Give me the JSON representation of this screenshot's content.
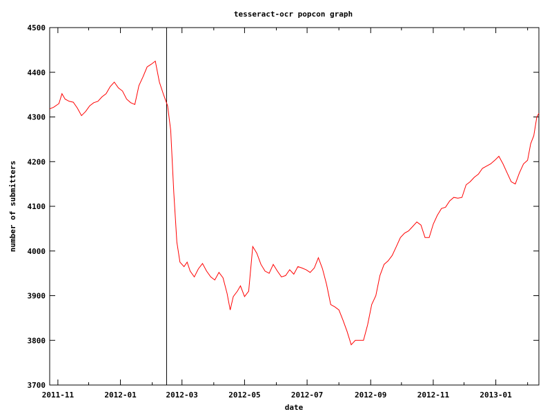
{
  "chart_data": {
    "type": "line",
    "title": "tesseract-ocr popcon graph",
    "xlabel": "date",
    "ylabel": "number of submitters",
    "ylim": [
      3700,
      4500
    ],
    "xlim": [
      "2011-10-24",
      "2013-02-12"
    ],
    "y_ticks": [
      3700,
      3800,
      3900,
      4000,
      4100,
      4200,
      4300,
      4400,
      4500
    ],
    "x_ticks": [
      "2011-11",
      "2012-01",
      "2012-03",
      "2012-05",
      "2012-07",
      "2012-09",
      "2012-11",
      "2013-01"
    ],
    "x_tick_dates": [
      "2011-11-01",
      "2012-01-01",
      "2012-03-01",
      "2012-05-01",
      "2012-07-01",
      "2012-09-01",
      "2012-11-01",
      "2013-01-01"
    ],
    "grid": false,
    "legend": "none",
    "marker_line_date": "2012-02-15",
    "series": [
      {
        "color": "#ff0000",
        "points": [
          [
            "2011-10-24",
            4318
          ],
          [
            "2011-10-28",
            4322
          ],
          [
            "2011-11-02",
            4330
          ],
          [
            "2011-11-05",
            4352
          ],
          [
            "2011-11-08",
            4340
          ],
          [
            "2011-11-12",
            4335
          ],
          [
            "2011-11-16",
            4333
          ],
          [
            "2011-11-20",
            4320
          ],
          [
            "2011-11-24",
            4303
          ],
          [
            "2011-11-28",
            4312
          ],
          [
            "2011-12-02",
            4325
          ],
          [
            "2011-12-06",
            4332
          ],
          [
            "2011-12-10",
            4335
          ],
          [
            "2011-12-14",
            4345
          ],
          [
            "2011-12-18",
            4352
          ],
          [
            "2011-12-22",
            4368
          ],
          [
            "2011-12-26",
            4378
          ],
          [
            "2011-12-30",
            4365
          ],
          [
            "2012-01-03",
            4358
          ],
          [
            "2012-01-07",
            4340
          ],
          [
            "2012-01-11",
            4332
          ],
          [
            "2012-01-15",
            4328
          ],
          [
            "2012-01-19",
            4370
          ],
          [
            "2012-01-23",
            4390
          ],
          [
            "2012-01-27",
            4412
          ],
          [
            "2012-01-31",
            4418
          ],
          [
            "2012-02-04",
            4425
          ],
          [
            "2012-02-08",
            4378
          ],
          [
            "2012-02-12",
            4350
          ],
          [
            "2012-02-16",
            4325
          ],
          [
            "2012-02-19",
            4270
          ],
          [
            "2012-02-22",
            4130
          ],
          [
            "2012-02-25",
            4020
          ],
          [
            "2012-02-28",
            3975
          ],
          [
            "2012-03-03",
            3965
          ],
          [
            "2012-03-06",
            3975
          ],
          [
            "2012-03-09",
            3955
          ],
          [
            "2012-03-13",
            3942
          ],
          [
            "2012-03-17",
            3960
          ],
          [
            "2012-03-21",
            3972
          ],
          [
            "2012-03-25",
            3955
          ],
          [
            "2012-03-29",
            3942
          ],
          [
            "2012-04-02",
            3935
          ],
          [
            "2012-04-06",
            3952
          ],
          [
            "2012-04-10",
            3940
          ],
          [
            "2012-04-14",
            3905
          ],
          [
            "2012-04-17",
            3868
          ],
          [
            "2012-04-20",
            3898
          ],
          [
            "2012-04-24",
            3910
          ],
          [
            "2012-04-27",
            3922
          ],
          [
            "2012-05-01",
            3898
          ],
          [
            "2012-05-05",
            3910
          ],
          [
            "2012-05-09",
            4010
          ],
          [
            "2012-05-13",
            3995
          ],
          [
            "2012-05-17",
            3970
          ],
          [
            "2012-05-21",
            3955
          ],
          [
            "2012-05-25",
            3950
          ],
          [
            "2012-05-29",
            3970
          ],
          [
            "2012-06-02",
            3955
          ],
          [
            "2012-06-06",
            3942
          ],
          [
            "2012-06-10",
            3945
          ],
          [
            "2012-06-14",
            3958
          ],
          [
            "2012-06-18",
            3948
          ],
          [
            "2012-06-22",
            3965
          ],
          [
            "2012-06-26",
            3962
          ],
          [
            "2012-06-30",
            3958
          ],
          [
            "2012-07-04",
            3952
          ],
          [
            "2012-07-08",
            3962
          ],
          [
            "2012-07-12",
            3985
          ],
          [
            "2012-07-16",
            3960
          ],
          [
            "2012-07-20",
            3925
          ],
          [
            "2012-07-24",
            3880
          ],
          [
            "2012-07-28",
            3875
          ],
          [
            "2012-08-01",
            3868
          ],
          [
            "2012-08-05",
            3845
          ],
          [
            "2012-08-09",
            3820
          ],
          [
            "2012-08-13",
            3790
          ],
          [
            "2012-08-17",
            3800
          ],
          [
            "2012-08-21",
            3800
          ],
          [
            "2012-08-25",
            3800
          ],
          [
            "2012-08-29",
            3835
          ],
          [
            "2012-09-02",
            3880
          ],
          [
            "2012-09-06",
            3900
          ],
          [
            "2012-09-10",
            3945
          ],
          [
            "2012-09-14",
            3970
          ],
          [
            "2012-09-18",
            3978
          ],
          [
            "2012-09-22",
            3990
          ],
          [
            "2012-09-26",
            4010
          ],
          [
            "2012-09-30",
            4030
          ],
          [
            "2012-10-04",
            4040
          ],
          [
            "2012-10-08",
            4045
          ],
          [
            "2012-10-12",
            4055
          ],
          [
            "2012-10-16",
            4065
          ],
          [
            "2012-10-20",
            4058
          ],
          [
            "2012-10-24",
            4030
          ],
          [
            "2012-10-28",
            4030
          ],
          [
            "2012-11-01",
            4060
          ],
          [
            "2012-11-05",
            4080
          ],
          [
            "2012-11-09",
            4095
          ],
          [
            "2012-11-13",
            4098
          ],
          [
            "2012-11-17",
            4112
          ],
          [
            "2012-11-21",
            4120
          ],
          [
            "2012-11-25",
            4118
          ],
          [
            "2012-11-29",
            4120
          ],
          [
            "2012-12-03",
            4148
          ],
          [
            "2012-12-07",
            4155
          ],
          [
            "2012-12-11",
            4165
          ],
          [
            "2012-12-15",
            4172
          ],
          [
            "2012-12-19",
            4185
          ],
          [
            "2012-12-23",
            4190
          ],
          [
            "2012-12-27",
            4195
          ],
          [
            "2012-12-31",
            4203
          ],
          [
            "2013-01-04",
            4212
          ],
          [
            "2013-01-08",
            4195
          ],
          [
            "2013-01-12",
            4175
          ],
          [
            "2013-01-16",
            4155
          ],
          [
            "2013-01-20",
            4150
          ],
          [
            "2013-01-24",
            4175
          ],
          [
            "2013-01-28",
            4195
          ],
          [
            "2013-02-01",
            4203
          ],
          [
            "2013-02-04",
            4240
          ],
          [
            "2013-02-07",
            4258
          ],
          [
            "2013-02-10",
            4300
          ],
          [
            "2013-02-12",
            4308
          ]
        ]
      }
    ]
  }
}
